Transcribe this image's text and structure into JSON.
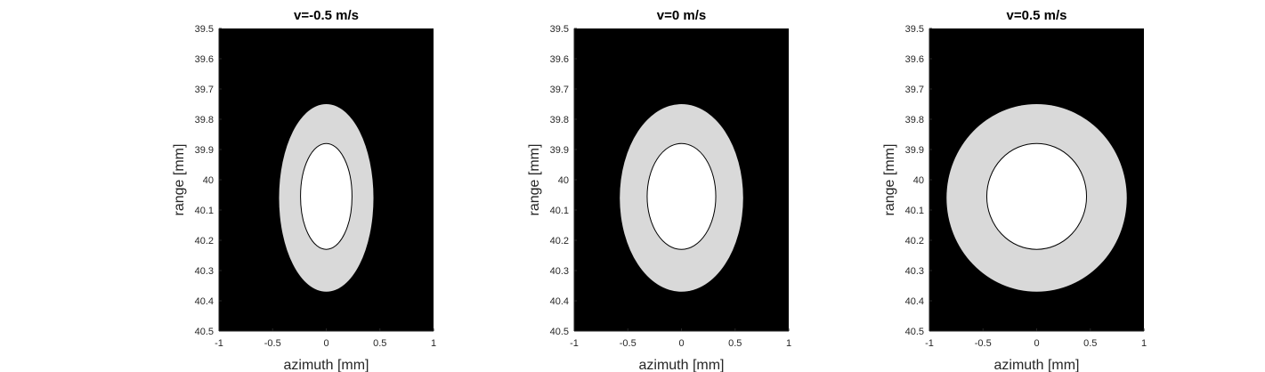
{
  "colors": {
    "background": "#000000",
    "outer_region": "#d9d9d9",
    "inner_region": "#ffffff",
    "inner_outline": "#000000",
    "axis": "#262626"
  },
  "chart_data": [
    {
      "type": "contour",
      "title": "v=-0.5 m/s",
      "xlabel": "azimuth [mm]",
      "ylabel": "range [mm]",
      "xlim": [
        -1,
        1
      ],
      "ylim": [
        39.5,
        40.5
      ],
      "y_reversed": true,
      "x_ticks": [
        "-1",
        "-0.5",
        "0",
        "0.5",
        "1"
      ],
      "y_ticks": [
        "39.5",
        "39.6",
        "39.7",
        "39.8",
        "39.9",
        "40",
        "40.1",
        "40.2",
        "40.3",
        "40.4",
        "40.5"
      ],
      "regions": [
        {
          "name": "outer",
          "color": "#d9d9d9",
          "center": [
            0.0,
            40.06
          ],
          "x_half_width": 0.44,
          "y_half_height": 0.31
        },
        {
          "name": "inner",
          "color": "#ffffff",
          "center": [
            0.0,
            40.055
          ],
          "x_half_width": 0.24,
          "y_half_height": 0.175
        }
      ]
    },
    {
      "type": "contour",
      "title": "v=0 m/s",
      "xlabel": "azimuth [mm]",
      "ylabel": "range [mm]",
      "xlim": [
        -1,
        1
      ],
      "ylim": [
        39.5,
        40.5
      ],
      "y_reversed": true,
      "x_ticks": [
        "-1",
        "-0.5",
        "0",
        "0.5",
        "1"
      ],
      "y_ticks": [
        "39.5",
        "39.6",
        "39.7",
        "39.8",
        "39.9",
        "40",
        "40.1",
        "40.2",
        "40.3",
        "40.4",
        "40.5"
      ],
      "regions": [
        {
          "name": "outer",
          "color": "#d9d9d9",
          "center": [
            0.0,
            40.06
          ],
          "x_half_width": 0.575,
          "y_half_height": 0.31
        },
        {
          "name": "inner",
          "color": "#ffffff",
          "center": [
            0.0,
            40.055
          ],
          "x_half_width": 0.32,
          "y_half_height": 0.175
        }
      ]
    },
    {
      "type": "contour",
      "title": "v=0.5 m/s",
      "xlabel": "azimuth [mm]",
      "ylabel": "range [mm]",
      "xlim": [
        -1,
        1
      ],
      "ylim": [
        39.5,
        40.5
      ],
      "y_reversed": true,
      "x_ticks": [
        "-1",
        "-0.5",
        "0",
        "0.5",
        "1"
      ],
      "y_ticks": [
        "39.5",
        "39.6",
        "39.7",
        "39.8",
        "39.9",
        "40",
        "40.1",
        "40.2",
        "40.3",
        "40.4",
        "40.5"
      ],
      "regions": [
        {
          "name": "outer",
          "color": "#d9d9d9",
          "center": [
            0.0,
            40.06
          ],
          "x_half_width": 0.84,
          "y_half_height": 0.31
        },
        {
          "name": "inner",
          "color": "#ffffff",
          "center": [
            0.0,
            40.055
          ],
          "x_half_width": 0.465,
          "y_half_height": 0.175
        }
      ]
    }
  ]
}
